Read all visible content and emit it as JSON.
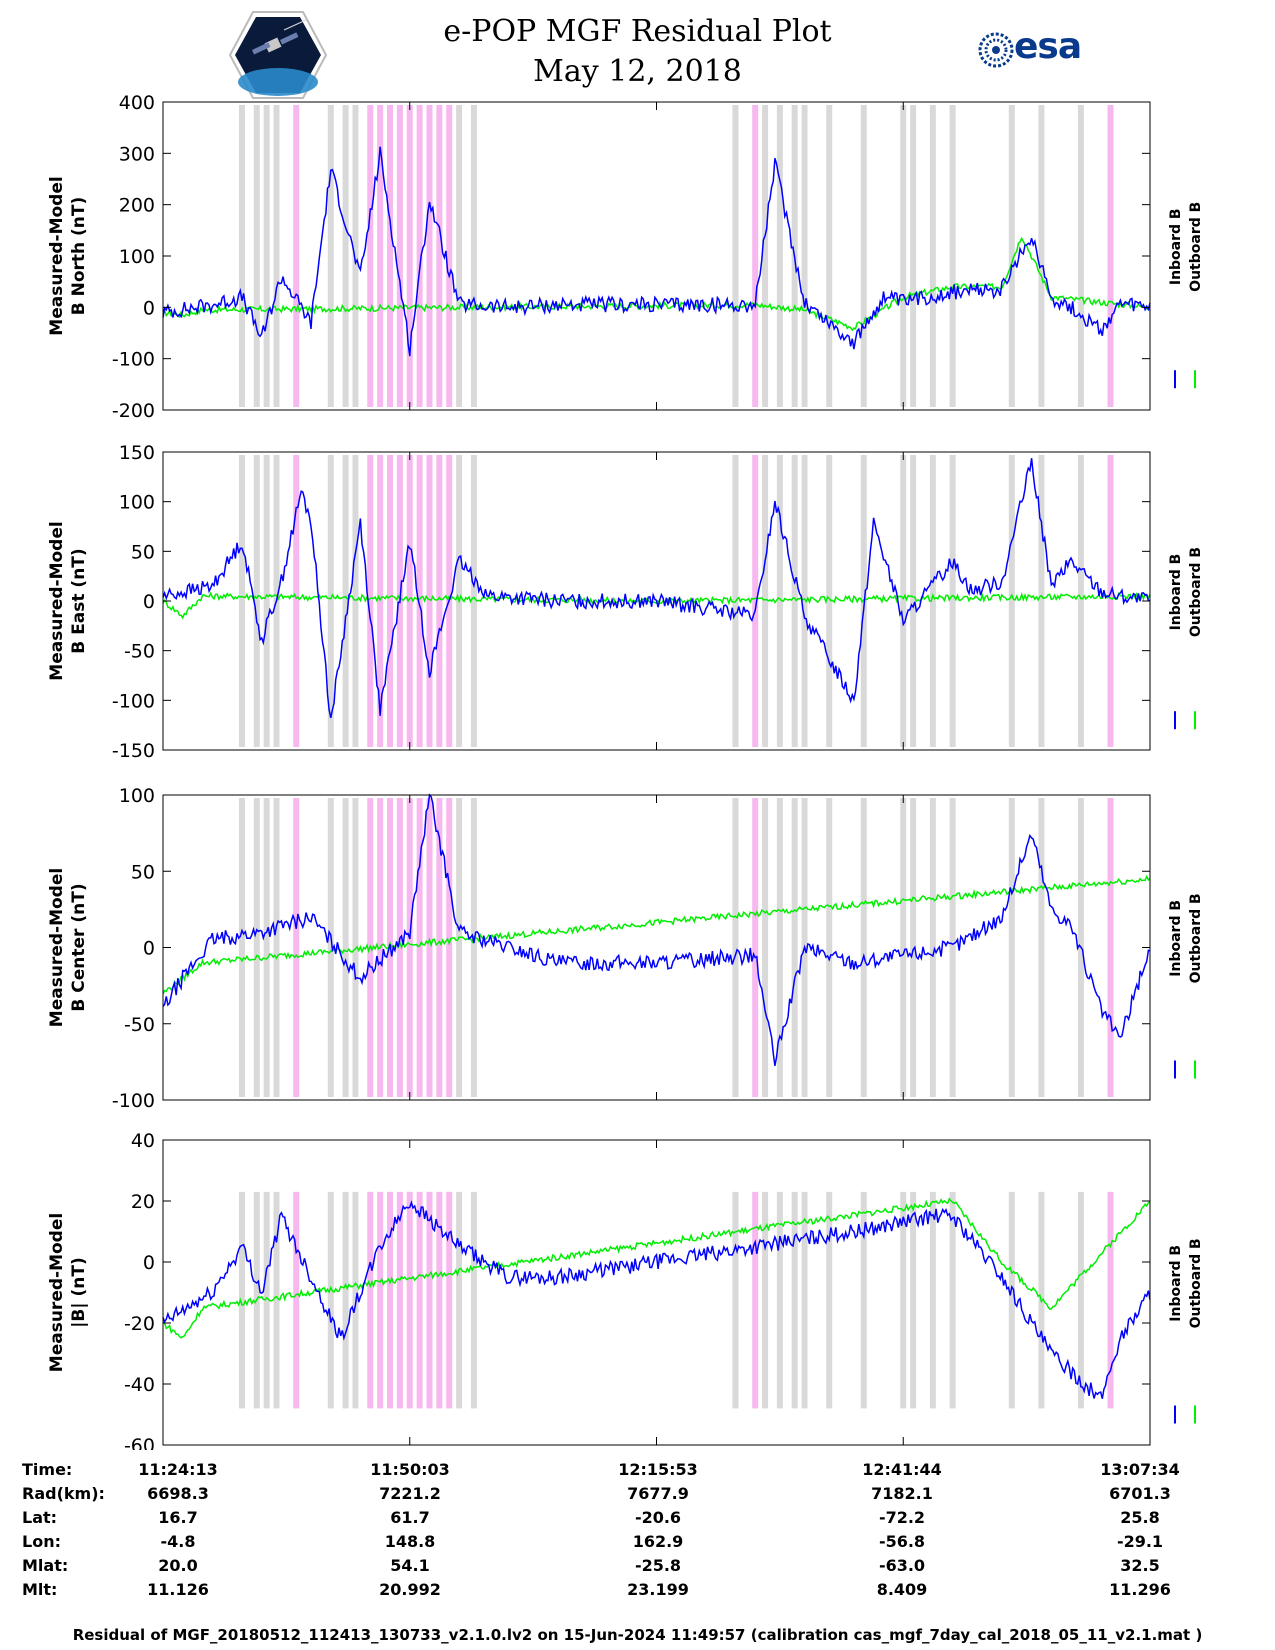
{
  "header": {
    "title_line1": "e-POP MGF Residual Plot",
    "title_line2": "May 12, 2018",
    "left_logo": "cassiope-satellite-logo",
    "right_logo_text": "esa"
  },
  "colors": {
    "inboard": "#0000ff",
    "outboard": "#00ee00",
    "gray_band": "#d9d9d9",
    "pink_band": "#f7b8f0"
  },
  "chart_data": [
    {
      "type": "line",
      "panel": "B North",
      "ylabel_line1": "Measured-Model",
      "ylabel_line2": "B North (nT)",
      "ylim": [
        -200,
        400
      ],
      "yticks": [
        400,
        300,
        200,
        100,
        0,
        -100,
        -200
      ],
      "ytick_labels": [
        "400",
        "300",
        "200",
        "100",
        "0",
        "-100",
        "-200"
      ],
      "legend": [
        "Inboard B",
        "Outboard B"
      ],
      "series": [
        {
          "name": "Inboard B",
          "x": [
            0,
            0.05,
            0.08,
            0.1,
            0.12,
            0.15,
            0.17,
            0.2,
            0.22,
            0.25,
            0.27,
            0.3,
            0.35,
            0.4,
            0.5,
            0.6,
            0.62,
            0.65,
            0.7,
            0.73,
            0.75,
            0.8,
            0.85,
            0.88,
            0.9,
            0.92,
            0.95,
            0.97,
            1.0
          ],
          "values": [
            -10,
            5,
            20,
            -60,
            60,
            -30,
            270,
            60,
            300,
            -80,
            210,
            5,
            0,
            5,
            5,
            5,
            280,
            10,
            -70,
            20,
            10,
            30,
            35,
            140,
            20,
            0,
            -45,
            5,
            0
          ]
        },
        {
          "name": "Outboard B",
          "x": [
            0,
            0.02,
            0.04,
            0.3,
            0.6,
            0.65,
            0.7,
            0.75,
            0.8,
            0.85,
            0.87,
            0.9,
            1.0
          ],
          "values": [
            -10,
            -15,
            -5,
            0,
            5,
            -5,
            -40,
            20,
            40,
            40,
            140,
            20,
            0
          ]
        }
      ]
    },
    {
      "type": "line",
      "panel": "B East",
      "ylabel_line1": "Measured-Model",
      "ylabel_line2": "B East (nT)",
      "ylim": [
        -150,
        150
      ],
      "yticks": [
        150,
        100,
        50,
        0,
        -50,
        -100,
        -150
      ],
      "ytick_labels": [
        "150",
        "100",
        "50",
        "0",
        "-50",
        "-100",
        "-150"
      ],
      "legend": [
        "Inboard B",
        "Outboard B"
      ],
      "series": [
        {
          "name": "Inboard B",
          "x": [
            0,
            0.05,
            0.08,
            0.1,
            0.12,
            0.14,
            0.15,
            0.17,
            0.2,
            0.22,
            0.25,
            0.27,
            0.3,
            0.33,
            0.4,
            0.5,
            0.6,
            0.62,
            0.65,
            0.7,
            0.72,
            0.75,
            0.8,
            0.82,
            0.85,
            0.88,
            0.9,
            0.92,
            0.95,
            0.97,
            1.0
          ],
          "values": [
            5,
            15,
            60,
            -40,
            20,
            110,
            80,
            -120,
            80,
            -110,
            60,
            -70,
            40,
            5,
            0,
            0,
            -15,
            100,
            -15,
            -100,
            80,
            -20,
            40,
            10,
            20,
            140,
            15,
            40,
            10,
            5,
            0
          ]
        },
        {
          "name": "Outboard B",
          "x": [
            0,
            0.02,
            0.04,
            0.5,
            1.0
          ],
          "values": [
            0,
            -15,
            5,
            0,
            5
          ]
        }
      ]
    },
    {
      "type": "line",
      "panel": "B Center",
      "ylabel_line1": "Measured-Model",
      "ylabel_line2": "B Center (nT)",
      "ylim": [
        -100,
        100
      ],
      "yticks": [
        100,
        50,
        0,
        -50,
        -100
      ],
      "ytick_labels": [
        "100",
        "50",
        "0",
        "-50",
        "-100"
      ],
      "legend": [
        "Inboard B",
        "Outboard B"
      ],
      "series": [
        {
          "name": "Inboard B",
          "x": [
            0,
            0.02,
            0.05,
            0.1,
            0.15,
            0.2,
            0.25,
            0.27,
            0.3,
            0.35,
            0.4,
            0.5,
            0.6,
            0.62,
            0.65,
            0.7,
            0.75,
            0.8,
            0.85,
            0.88,
            0.9,
            0.92,
            0.95,
            0.97,
            1.0
          ],
          "values": [
            -40,
            -20,
            5,
            10,
            20,
            -20,
            10,
            100,
            10,
            0,
            -10,
            -10,
            -5,
            -75,
            0,
            -10,
            -5,
            0,
            20,
            75,
            25,
            15,
            -40,
            -60,
            0
          ]
        },
        {
          "name": "Outboard B",
          "x": [
            0,
            0.02,
            0.04,
            1.0
          ],
          "values": [
            -30,
            -20,
            -10,
            45
          ]
        }
      ]
    },
    {
      "type": "line",
      "panel": "|B|",
      "ylabel_line1": "Measured-Model",
      "ylabel_line2": "|B| (nT)",
      "ylim": [
        -60,
        40
      ],
      "yticks": [
        40,
        20,
        0,
        -20,
        -40,
        -60
      ],
      "ytick_labels": [
        "40",
        "20",
        "0",
        "-20",
        "-40",
        "-60"
      ],
      "legend": [
        "Inboard B",
        "Outboard B"
      ],
      "series": [
        {
          "name": "Inboard B",
          "x": [
            0,
            0.05,
            0.08,
            0.1,
            0.12,
            0.15,
            0.18,
            0.22,
            0.25,
            0.3,
            0.35,
            0.4,
            0.5,
            0.6,
            0.7,
            0.78,
            0.8,
            0.85,
            0.9,
            0.95,
            0.97,
            1.0
          ],
          "values": [
            -20,
            -10,
            5,
            -10,
            15,
            -5,
            -25,
            5,
            20,
            5,
            -5,
            -5,
            0,
            5,
            10,
            15,
            15,
            -5,
            -30,
            -45,
            -25,
            -10
          ]
        },
        {
          "name": "Outboard B",
          "x": [
            0,
            0.02,
            0.04,
            0.8,
            0.85,
            0.9,
            1.0
          ],
          "values": [
            -20,
            -25,
            -15,
            20,
            0,
            -15,
            20
          ]
        }
      ]
    }
  ],
  "x_axis": {
    "tick_fractions": [
      0,
      0.25,
      0.5,
      0.75,
      1.0
    ]
  },
  "gray_bands": [
    0.08,
    0.095,
    0.105,
    0.115,
    0.17,
    0.185,
    0.195,
    0.315,
    0.3,
    0.58,
    0.61,
    0.625,
    0.64,
    0.65,
    0.675,
    0.71,
    0.75,
    0.76,
    0.78,
    0.8,
    0.86,
    0.89,
    0.93
  ],
  "pink_bands": [
    0.135,
    0.21,
    0.22,
    0.23,
    0.24,
    0.25,
    0.26,
    0.27,
    0.28,
    0.29,
    0.6,
    0.96
  ],
  "ephemeris": {
    "labels": [
      "Time:",
      "Rad(km):",
      "Lat:",
      "Lon:",
      "Mlat:",
      "Mlt:"
    ],
    "columns": [
      {
        "time": "11:24:13",
        "rad": "6698.3",
        "lat": "16.7",
        "lon": "-4.8",
        "mlat": "20.0",
        "mlt": "11.126"
      },
      {
        "time": "11:50:03",
        "rad": "7221.2",
        "lat": "61.7",
        "lon": "148.8",
        "mlat": "54.1",
        "mlt": "20.992"
      },
      {
        "time": "12:15:53",
        "rad": "7677.9",
        "lat": "-20.6",
        "lon": "162.9",
        "mlat": "-25.8",
        "mlt": "23.199"
      },
      {
        "time": "12:41:44",
        "rad": "7182.1",
        "lat": "-72.2",
        "lon": "-56.8",
        "mlat": "-63.0",
        "mlt": "8.409"
      },
      {
        "time": "13:07:34",
        "rad": "6701.3",
        "lat": "25.8",
        "lon": "-29.1",
        "mlat": "32.5",
        "mlt": "11.296"
      }
    ]
  },
  "footer": "Residual of MGF_20180512_112413_130733_v2.1.0.lv2 on 15-Jun-2024 11:49:57 (calibration cas_mgf_7day_cal_2018_05_11_v2.1.mat )"
}
